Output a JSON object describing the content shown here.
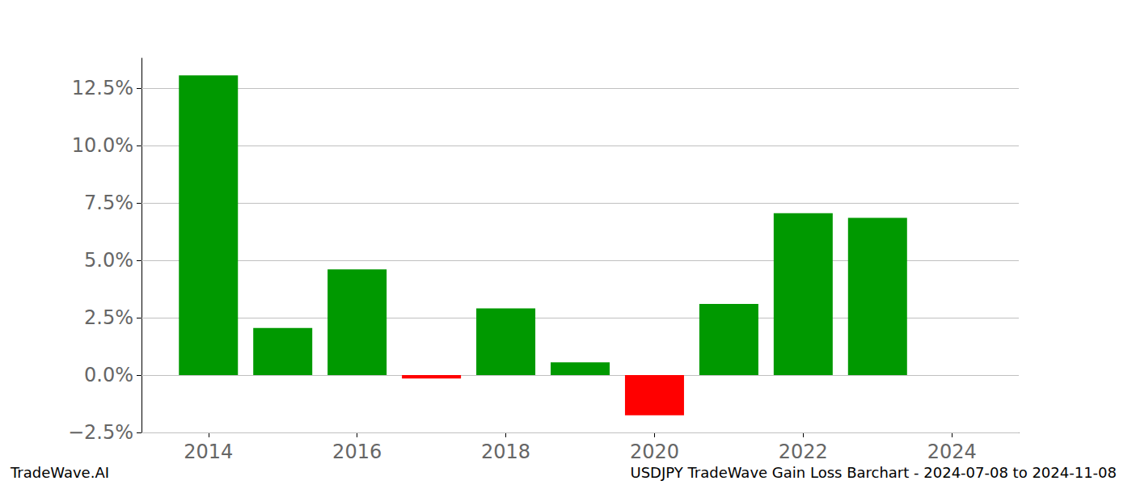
{
  "chart_data": {
    "type": "bar",
    "title": "USDJPY TradeWave Gain Loss Barchart - 2024-07-08 to 2024-11-08",
    "annotations": [
      "TradeWave.AI"
    ],
    "x": [
      2014,
      2015,
      2016,
      2017,
      2018,
      2019,
      2020,
      2021,
      2022,
      2023
    ],
    "values": [
      13.05,
      2.05,
      4.6,
      -0.15,
      2.9,
      0.55,
      -1.75,
      3.1,
      7.05,
      6.85
    ],
    "colors": [
      "#009900",
      "#009900",
      "#009900",
      "#ff0000",
      "#009900",
      "#009900",
      "#ff0000",
      "#009900",
      "#009900",
      "#009900"
    ],
    "xlim": [
      2013.1,
      2024.9
    ],
    "xticks": [
      2014,
      2016,
      2018,
      2020,
      2022,
      2024
    ],
    "ylim": [
      -2.5,
      13.8
    ],
    "yticks": [
      {
        "value": -2.5,
        "label": "−2.5%"
      },
      {
        "value": 0,
        "label": "0.0%"
      },
      {
        "value": 2.5,
        "label": "2.5%"
      },
      {
        "value": 5,
        "label": "5.0%"
      },
      {
        "value": 7.5,
        "label": "7.5%"
      },
      {
        "value": 10,
        "label": "10.0%"
      },
      {
        "value": 12.5,
        "label": "12.5%"
      }
    ],
    "grid": true
  }
}
